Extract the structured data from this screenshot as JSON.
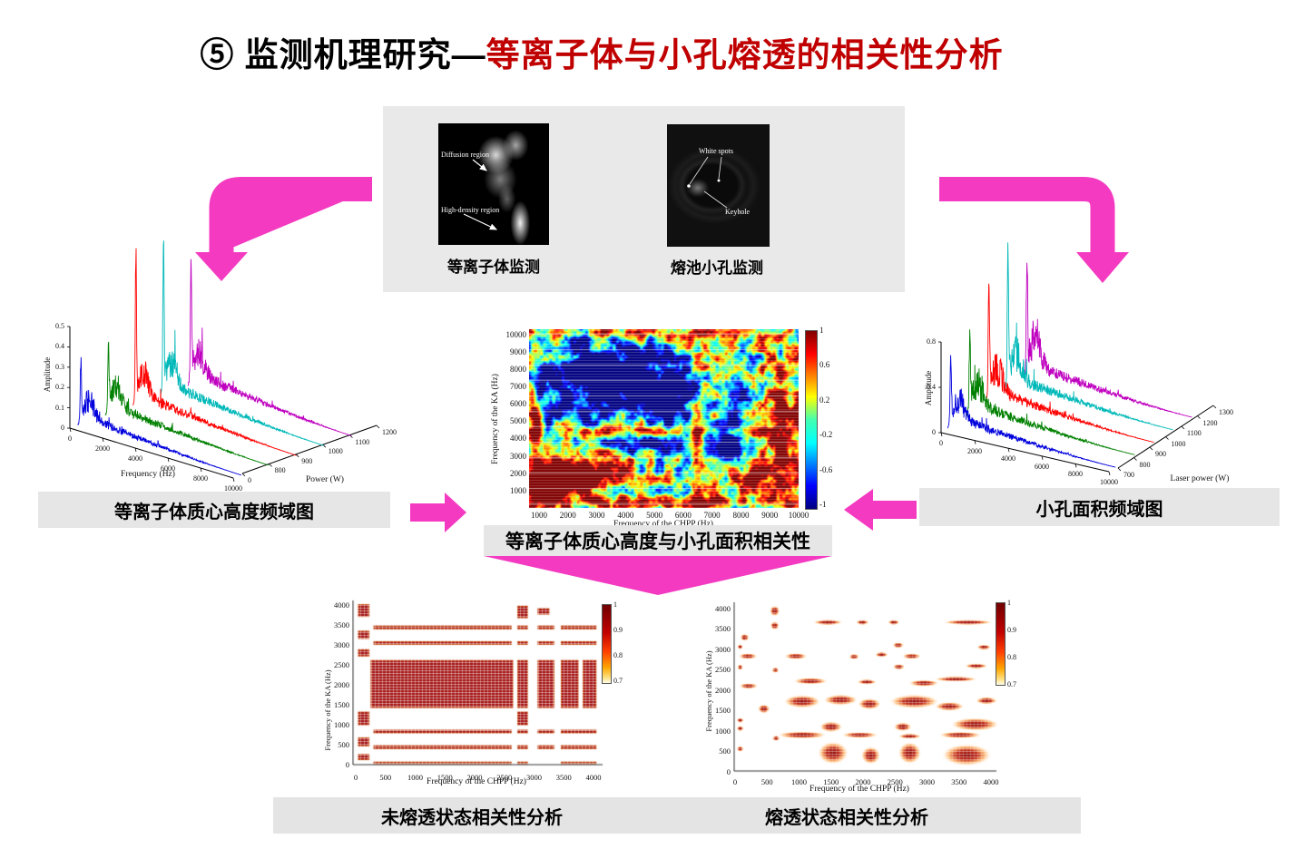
{
  "slide_title": {
    "prefix": "⑤ 监测机理研究—",
    "highlight": "等离子体与小孔熔透的相关性分析"
  },
  "colors": {
    "pink": "#f43ac1",
    "title_red": "#c00000",
    "panel_gray": "#e9e9e9",
    "bar_gray": "#e6e6e6",
    "series": [
      "#0000dd",
      "#008000",
      "#ff0000",
      "#00b8b8",
      "#bf00bf"
    ]
  },
  "top_panel": {
    "plasma": {
      "caption": "等离子体监测",
      "annotation1": "Diffusion region",
      "annotation2": "High-density region"
    },
    "keyhole": {
      "caption": "熔池小孔监测",
      "annotation1": "White spots",
      "annotation2": "Keyhole"
    }
  },
  "labels": {
    "left_chart": "等离子体质心高度频域图",
    "right_chart": "小孔面积频域图",
    "center_chart": "等离子体质心高度与小孔面积相关性",
    "bottom_left": "未熔透状态相关性分析",
    "bottom_right": "熔透状态相关性分析"
  },
  "chart_data": [
    {
      "id": "plasma_centroid_waterfall",
      "type": "line",
      "title": "等离子体质心高度频域图",
      "xlabel": "Frequency (Hz)",
      "ylabel": "Amplitude",
      "zlabel": "Power (W)",
      "x_ticks": [
        0,
        2000,
        4000,
        6000,
        8000,
        10000
      ],
      "amp_ticks": [
        0,
        0.1,
        0.2,
        0.3,
        0.4,
        0.5
      ],
      "power_ticks": [
        0,
        800,
        900,
        1000,
        1100,
        1200
      ],
      "x_range": [
        0,
        10000
      ],
      "amp_range": [
        0,
        0.5
      ],
      "series_colors": [
        "#0000dd",
        "#008000",
        "#ff0000",
        "#00b8b8",
        "#bf00bf"
      ],
      "description": "Five amplitude spectra of plasma centroid height at laser powers 800-1200 W; sharp low-frequency spike near 300 Hz then 1/f-type decay to 10 kHz"
    },
    {
      "id": "keyhole_area_waterfall",
      "type": "line",
      "title": "小孔面积频域图",
      "xlabel": "",
      "ylabel": "Amplitude",
      "zlabel": "Laser power (W)",
      "x_ticks": [
        0,
        2000,
        4000,
        6000,
        8000,
        10000
      ],
      "amp_ticks": [
        0,
        0.4,
        0.8
      ],
      "power_ticks": [
        700,
        800,
        900,
        1000,
        1100,
        1200,
        1300
      ],
      "x_range": [
        0,
        10000
      ],
      "amp_range": [
        0,
        0.8
      ],
      "series_colors": [
        "#0000dd",
        "#008000",
        "#ff0000",
        "#00b8b8",
        "#bf00bf"
      ],
      "description": "Five amplitude spectra of keyhole area at laser powers 700-1300 W; sharp low-frequency spike then decaying noise tail"
    },
    {
      "id": "correlation_heatmap",
      "type": "heatmap",
      "title": "等离子体质心高度与小孔面积相关性",
      "xlabel": "Frequency of the CHPP (Hz)",
      "ylabel": "Frequency of the KA (Hz)",
      "x_ticks": [
        1000,
        2000,
        3000,
        4000,
        5000,
        6000,
        7000,
        8000,
        9000,
        10000
      ],
      "y_ticks": [
        1000,
        2000,
        3000,
        4000,
        5000,
        6000,
        7000,
        8000,
        9000,
        10000
      ],
      "colormap": "jet",
      "value_range": [
        -1,
        1
      ],
      "colorbar_ticks": [
        1,
        0.6,
        0.2,
        -0.2,
        -0.6,
        -1
      ],
      "hot_regions": [
        [
          1600,
          1800,
          1500,
          900,
          2.2
        ],
        [
          800,
          1000,
          600,
          800,
          1.6
        ],
        [
          5000,
          350,
          4700,
          300,
          0.9
        ],
        [
          9400,
          4600,
          700,
          3600,
          1.2
        ],
        [
          6300,
          5200,
          350,
          4200,
          0.8
        ],
        [
          5000,
          4350,
          4600,
          280,
          0.7
        ],
        [
          150,
          5000,
          220,
          4800,
          0.9
        ],
        [
          8300,
          1900,
          900,
          700,
          1.0
        ],
        [
          6800,
          9700,
          2800,
          300,
          0.7
        ],
        [
          2500,
          9800,
          1800,
          250,
          0.6
        ]
      ],
      "cold_regions": [
        [
          2700,
          7300,
          2200,
          1900,
          -2.0
        ],
        [
          5400,
          6300,
          1000,
          2200,
          -1.3
        ],
        [
          7700,
          5800,
          550,
          2600,
          -1.1
        ],
        [
          4300,
          3600,
          1600,
          500,
          -0.8
        ],
        [
          7100,
          3400,
          800,
          900,
          -1.0
        ],
        [
          1500,
          5500,
          1200,
          600,
          -0.6
        ]
      ],
      "description": "Correlation coefficient map between keyhole-area (KA) and plasma centroid-height (CHPP) spectra; strong positive correlation (red) at low frequencies below ~2.6 kHz, negative correlation (blue) in 5-9 kHz band"
    },
    {
      "id": "unpenetrated_correlation",
      "type": "heatmap",
      "title": "未熔透状态相关性分析",
      "xlabel": "Frequency of the CHPP (Hz)",
      "ylabel": "Frequency of the KA (Hz)",
      "x_ticks": [
        0,
        500,
        1000,
        1500,
        2000,
        2500,
        3000,
        3500,
        4000
      ],
      "y_ticks": [
        0,
        500,
        1000,
        1500,
        2000,
        2500,
        3000,
        3500,
        4000
      ],
      "colormap": "hot_reversed",
      "value_range": [
        0.7,
        1
      ],
      "colorbar_ticks": [
        1,
        0.9,
        0.8,
        0.7
      ],
      "blocks": [
        [
          250,
          1400,
          2650,
          2600
        ],
        [
          300,
          3370,
          2620,
          3460
        ],
        [
          300,
          2980,
          2620,
          3070
        ],
        [
          300,
          760,
          2620,
          850
        ],
        [
          300,
          370,
          2620,
          460
        ],
        [
          300,
          0,
          2620,
          50
        ],
        [
          40,
          3680,
          230,
          4000
        ],
        [
          40,
          3130,
          230,
          3330
        ],
        [
          40,
          2690,
          230,
          2870
        ],
        [
          40,
          960,
          230,
          1310
        ],
        [
          40,
          440,
          230,
          660
        ],
        [
          40,
          90,
          230,
          240
        ],
        [
          2720,
          3650,
          2900,
          3960
        ],
        [
          2720,
          3370,
          2900,
          3460
        ],
        [
          2720,
          2980,
          2900,
          3070
        ],
        [
          2720,
          1400,
          2900,
          2600
        ],
        [
          2720,
          960,
          2900,
          1310
        ],
        [
          2720,
          760,
          2900,
          850
        ],
        [
          2720,
          370,
          2900,
          460
        ],
        [
          2720,
          0,
          2900,
          50
        ],
        [
          3060,
          3740,
          3260,
          3900
        ],
        [
          3060,
          3370,
          3340,
          3460
        ],
        [
          3060,
          2980,
          3340,
          3070
        ],
        [
          3060,
          1400,
          3340,
          2600
        ],
        [
          3060,
          760,
          3340,
          850
        ],
        [
          3060,
          370,
          3340,
          460
        ],
        [
          3450,
          3370,
          4050,
          3460
        ],
        [
          3450,
          2980,
          4050,
          3070
        ],
        [
          3450,
          1400,
          3750,
          2600
        ],
        [
          3820,
          1400,
          4050,
          2600
        ],
        [
          3450,
          760,
          4050,
          850
        ],
        [
          3450,
          370,
          4050,
          460
        ],
        [
          3450,
          0,
          4050,
          50
        ]
      ],
      "description": "High-correlation (>0.7) regions form a regular grid of bands: large block 1400-2600 Hz vs 250-2650 Hz, plus stripes near 400, 800, 3000 and 3400 Hz"
    },
    {
      "id": "penetrated_correlation",
      "type": "heatmap",
      "title": "熔透状态相关性分析",
      "xlabel": "Frequency of the CHPP (Hz)",
      "ylabel": "Frequency of the KA (Hz)",
      "x_ticks": [
        0,
        500,
        1000,
        1500,
        2000,
        2500,
        3000,
        3500,
        4000
      ],
      "y_ticks": [
        0,
        500,
        1000,
        1500,
        2000,
        2500,
        3000,
        3500,
        4000
      ],
      "colormap": "hot_reversed",
      "value_range": [
        0.7,
        1
      ],
      "colorbar_ticks": [
        1,
        0.9,
        0.8,
        0.7
      ],
      "blobs": [
        [
          150,
          3250,
          70,
          90
        ],
        [
          620,
          3900,
          80,
          130
        ],
        [
          620,
          3540,
          70,
          100
        ],
        [
          1450,
          3620,
          230,
          70
        ],
        [
          1990,
          3620,
          100,
          55
        ],
        [
          2480,
          3620,
          90,
          55
        ],
        [
          3640,
          3620,
          390,
          60
        ],
        [
          200,
          2790,
          150,
          70
        ],
        [
          950,
          2790,
          180,
          75
        ],
        [
          1860,
          2780,
          80,
          55
        ],
        [
          2290,
          2830,
          100,
          45
        ],
        [
          2760,
          2790,
          150,
          55
        ],
        [
          2550,
          3060,
          90,
          65
        ],
        [
          3890,
          3010,
          110,
          45
        ],
        [
          630,
          2450,
          55,
          45
        ],
        [
          2560,
          2530,
          95,
          65
        ],
        [
          3770,
          2550,
          180,
          55
        ],
        [
          210,
          2060,
          150,
          65
        ],
        [
          1180,
          2180,
          270,
          80
        ],
        [
          2060,
          2160,
          150,
          65
        ],
        [
          2950,
          2130,
          240,
          80
        ],
        [
          3450,
          2230,
          340,
          65
        ],
        [
          450,
          1500,
          95,
          110
        ],
        [
          1050,
          1680,
          290,
          160
        ],
        [
          1650,
          1720,
          270,
          130
        ],
        [
          2100,
          1620,
          180,
          140
        ],
        [
          2800,
          1680,
          390,
          170
        ],
        [
          3350,
          1560,
          230,
          110
        ],
        [
          3930,
          1700,
          170,
          90
        ],
        [
          1500,
          1060,
          180,
          130
        ],
        [
          2620,
          1060,
          140,
          110
        ],
        [
          3750,
          1120,
          380,
          160
        ],
        [
          1050,
          860,
          390,
          90
        ],
        [
          1950,
          860,
          290,
          70
        ],
        [
          2730,
          830,
          180,
          65
        ],
        [
          3520,
          860,
          340,
          80
        ],
        [
          1530,
          420,
          240,
          280
        ],
        [
          2120,
          360,
          150,
          220
        ],
        [
          2730,
          420,
          180,
          270
        ],
        [
          3620,
          370,
          390,
          270
        ],
        [
          80,
          520,
          55,
          60
        ],
        [
          80,
          1020,
          55,
          70
        ],
        [
          80,
          1220,
          55,
          60
        ],
        [
          80,
          2520,
          45,
          50
        ],
        [
          80,
          3020,
          45,
          50
        ],
        [
          640,
          780,
          60,
          60
        ]
      ],
      "description": "High-correlation regions are irregular scattered blobs, concentrated around 1500-1800 Hz band and below 1200 Hz"
    }
  ]
}
